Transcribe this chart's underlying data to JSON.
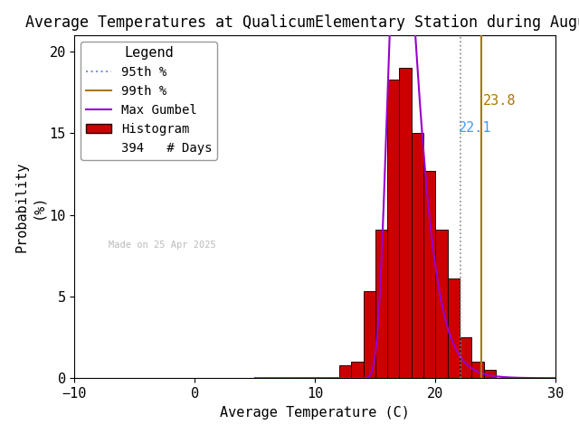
{
  "title": "Average Temperatures at QualicumElementary Station during August",
  "xlabel": "Average Temperature (C)",
  "ylabel": "Probability\n(%)",
  "xlim": [
    -10,
    30
  ],
  "ylim": [
    0,
    21
  ],
  "xticks": [
    -10,
    0,
    10,
    20,
    30
  ],
  "yticks": [
    0,
    5,
    10,
    15,
    20
  ],
  "bin_edges": [
    12,
    13,
    14,
    15,
    16,
    17,
    18,
    19,
    20,
    21,
    22,
    23,
    24,
    25
  ],
  "bin_heights": [
    0.8,
    1.0,
    5.3,
    9.1,
    18.3,
    19.0,
    15.0,
    12.7,
    9.1,
    6.1,
    2.5,
    1.0,
    0.5
  ],
  "bar_color": "#cc0000",
  "bar_edgecolor": "#220000",
  "gumbel_mu": 17.1,
  "gumbel_beta": 1.2,
  "gumbel_color": "#9900cc",
  "p95_x": 22.1,
  "p99_x": 23.8,
  "p95_color": "#888888",
  "p95_linestyle": "dotted",
  "p99_color": "#aa7700",
  "p99_linestyle": "solid",
  "p95_label_color": "#4499ff",
  "p99_label_color": "#aa7700",
  "n_days": 394,
  "watermark": "Made on 25 Apr 2025",
  "watermark_color": "#bbbbbb",
  "background_color": "#ffffff",
  "legend_title": "Legend",
  "title_fontsize": 12,
  "axis_fontsize": 11,
  "tick_fontsize": 11,
  "legend_fontsize": 10
}
